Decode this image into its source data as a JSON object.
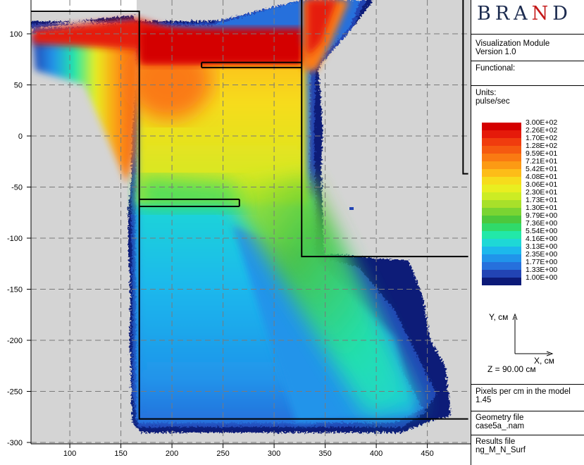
{
  "brand": {
    "name_first": "BRA",
    "name_accent": "N",
    "name_last": "D"
  },
  "module": {
    "name": "Visualization Module",
    "version": "Version 1.0"
  },
  "functional": {
    "label": "Functional:"
  },
  "units": {
    "label": "Units:",
    "value": "pulse/sec"
  },
  "axes_indicator": {
    "y_label": "Y, см",
    "x_label": "X, см",
    "z_text": "Z = 90.00 см"
  },
  "pixels": {
    "label": "Pixels per cm in the model",
    "value": "1.45"
  },
  "geometry": {
    "label": "Geometry file",
    "value": "case5a_.nam"
  },
  "results": {
    "label": "Results file",
    "value": "ng_M_N_Surf"
  },
  "colors": {
    "background": "#d4d4d4",
    "geometry_line": "#000000",
    "grid": "#7a7a7a"
  },
  "chart_data": {
    "type": "heatmap",
    "title": "",
    "xlabel": "X, см",
    "ylabel": "Y, см",
    "xlim": [
      62,
      490
    ],
    "ylim": [
      -302,
      135
    ],
    "x_ticks": [
      100,
      150,
      200,
      250,
      300,
      350,
      400,
      450
    ],
    "y_ticks": [
      100,
      50,
      0,
      -50,
      -100,
      -150,
      -200,
      -250,
      -300
    ],
    "grid": true,
    "legend_position": "right",
    "scale": "log",
    "units": "pulse/sec",
    "color_scale": [
      {
        "label": "3.00E+02",
        "color": "#d40000"
      },
      {
        "label": "2.26E+02",
        "color": "#e51a0a"
      },
      {
        "label": "1.70E+02",
        "color": "#f03c0e"
      },
      {
        "label": "1.28E+02",
        "color": "#f55a10"
      },
      {
        "label": "9.59E+01",
        "color": "#fa7a12"
      },
      {
        "label": "7.21E+01",
        "color": "#fc9a14"
      },
      {
        "label": "5.42E+01",
        "color": "#fdbc18"
      },
      {
        "label": "4.08E+01",
        "color": "#f6dc1c"
      },
      {
        "label": "3.06E+01",
        "color": "#e9ee20"
      },
      {
        "label": "2.30E+01",
        "color": "#ccec24"
      },
      {
        "label": "1.73E+01",
        "color": "#a8e02a"
      },
      {
        "label": "1.30E+01",
        "color": "#7ad432"
      },
      {
        "label": "9.79E+00",
        "color": "#4cc83c"
      },
      {
        "label": "7.36E+00",
        "color": "#30da6a"
      },
      {
        "label": "5.54E+00",
        "color": "#22e8a8"
      },
      {
        "label": "4.16E+00",
        "color": "#1ed8d6"
      },
      {
        "label": "3.13E+00",
        "color": "#1cb8ec"
      },
      {
        "label": "2.35E+00",
        "color": "#2094ea"
      },
      {
        "label": "1.77E+00",
        "color": "#2670dc"
      },
      {
        "label": "1.33E+00",
        "color": "#2244b4"
      },
      {
        "label": "1.00E+00",
        "color": "#0c1a78"
      }
    ],
    "geometry_lines": [
      [
        [
          62,
          122
        ],
        [
          168,
          122
        ],
        [
          168,
          -277
        ],
        [
          490,
          -277
        ]
      ],
      [
        [
          327,
          135
        ],
        [
          327,
          -118
        ],
        [
          490,
          -118
        ]
      ],
      [
        [
          229,
          72
        ],
        [
          327,
          72
        ]
      ],
      [
        [
          229,
          67
        ],
        [
          327,
          67
        ]
      ],
      [
        [
          229,
          72
        ],
        [
          229,
          67
        ]
      ],
      [
        [
          168,
          -62
        ],
        [
          266,
          -62
        ]
      ],
      [
        [
          168,
          -69
        ],
        [
          266,
          -69
        ]
      ],
      [
        [
          266,
          -62
        ],
        [
          266,
          -69
        ]
      ],
      [
        [
          485,
          135
        ],
        [
          485,
          -37
        ],
        [
          490,
          -37
        ]
      ]
    ]
  }
}
